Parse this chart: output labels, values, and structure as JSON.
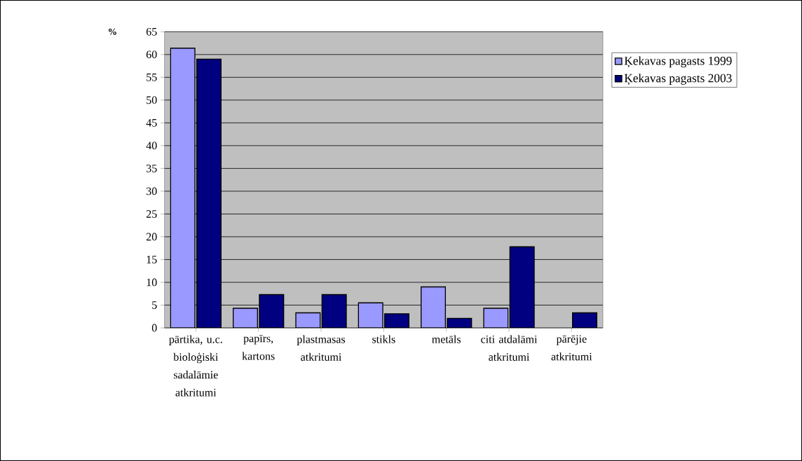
{
  "chart_data": {
    "type": "bar",
    "ylabel": "%",
    "categories": [
      "pārtika, u.c. bioloģiski sadalāmie atkritumi",
      "papīrs, kartons",
      "plastmasas atkritumi",
      "stikls",
      "metāls",
      "citi atdalāmi atkritumi",
      "pārējie atkritumi"
    ],
    "series": [
      {
        "name": "Ķekavas pagasts 1999",
        "color": "#9999ff",
        "values": [
          61.4,
          4.3,
          3.3,
          5.5,
          9.0,
          4.3,
          null
        ]
      },
      {
        "name": "Ķekavas pagasts 2003",
        "color": "#000080",
        "values": [
          59.0,
          7.3,
          7.3,
          3.1,
          2.1,
          17.8,
          3.3
        ]
      }
    ],
    "ylim": [
      0,
      65
    ],
    "yticks": [
      0,
      5,
      10,
      15,
      20,
      25,
      30,
      35,
      40,
      45,
      50,
      55,
      60,
      65
    ],
    "grid": "y",
    "legend": "right"
  }
}
